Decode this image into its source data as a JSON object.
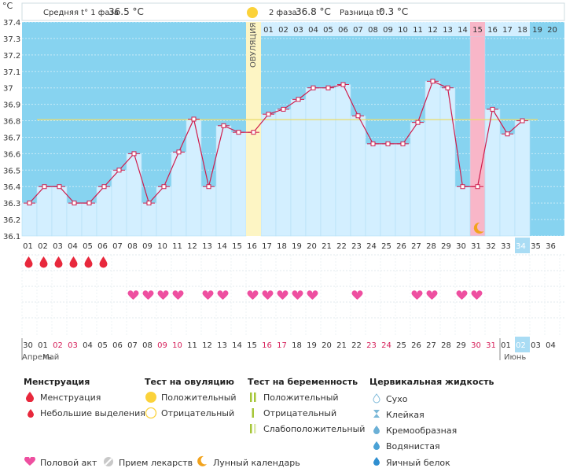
{
  "chart_data": {
    "type": "line",
    "title": "",
    "unit_label": "°C",
    "ylim": [
      36.1,
      37.4
    ],
    "y_ticks": [
      "37.4",
      "37.3",
      "37.2",
      "37.1",
      "37",
      "36.9",
      "36.8",
      "36.7",
      "36.6",
      "36.5",
      "36.4",
      "36.3",
      "36.2",
      "36.1"
    ],
    "cycle_days": [
      "01",
      "02",
      "03",
      "04",
      "05",
      "06",
      "07",
      "08",
      "09",
      "10",
      "11",
      "12",
      "13",
      "14",
      "15",
      "16",
      "17",
      "18",
      "19",
      "20",
      "21",
      "22",
      "23",
      "24",
      "25",
      "26",
      "27",
      "28",
      "29",
      "30",
      "31",
      "32",
      "33",
      "34",
      "35",
      "36"
    ],
    "temperatures": [
      36.3,
      36.4,
      36.4,
      36.3,
      36.3,
      36.4,
      36.5,
      36.6,
      36.3,
      36.4,
      36.61,
      36.81,
      36.4,
      36.77,
      36.73,
      36.73,
      36.84,
      36.87,
      36.93,
      37.0,
      37.0,
      37.02,
      36.83,
      36.66,
      36.66,
      36.66,
      36.79,
      37.04,
      37.0,
      36.4,
      36.4,
      36.87,
      36.72,
      36.8
    ],
    "coverline": 36.81,
    "ovulation_day": "16",
    "ovulation_label": "ОВУЛЯЦИЯ",
    "phase2_days": [
      "01",
      "02",
      "03",
      "04",
      "05",
      "06",
      "07",
      "08",
      "09",
      "10",
      "11",
      "12",
      "13",
      "14",
      "15",
      "16",
      "17",
      "18",
      "19",
      "20"
    ],
    "highlight_phase2_day": "15",
    "current_day": "34",
    "dates": [
      "30",
      "01",
      "02",
      "03",
      "04",
      "05",
      "06",
      "07",
      "08",
      "09",
      "10",
      "11",
      "12",
      "13",
      "14",
      "15",
      "16",
      "17",
      "18",
      "19",
      "20",
      "21",
      "22",
      "23",
      "24",
      "25",
      "26",
      "27",
      "28",
      "29",
      "30",
      "31",
      "01",
      "02",
      "03",
      "04"
    ],
    "weekend_dates_index": [
      2,
      3,
      9,
      10,
      16,
      17,
      23,
      24,
      30,
      31
    ],
    "current_date_index": 33,
    "month_labels": [
      "Апрель",
      "Май",
      "Июнь"
    ],
    "menstruation_days_index": [
      0,
      1,
      2,
      3,
      4,
      5
    ],
    "intercourse_days_index": [
      7,
      8,
      9,
      10,
      12,
      13,
      15,
      16,
      17,
      18,
      19,
      22,
      26,
      27,
      29,
      30
    ],
    "moon_day_index": 30
  },
  "header": {
    "phase1_label": "Средняя t° 1 фаза",
    "phase1_value": "36.5 °C",
    "phase2_label": "2 фаза",
    "phase2_value": "36.8 °C",
    "diff_label": "Разница t°",
    "diff_value": "0.3 °C"
  },
  "legend": {
    "menstruation_title": "Менструация",
    "menstruation_items": [
      "Менструация",
      "Небольшие выделения"
    ],
    "ovulation_title": "Тест на овуляцию",
    "ovulation_items": [
      "Положительный",
      "Отрицательный"
    ],
    "pregnancy_title": "Тест на беременность",
    "pregnancy_items": [
      "Положительный",
      "Отрицательный",
      "Слабоположительный"
    ],
    "cervical_title": "Цервикальная жидкость",
    "cervical_items": [
      "Сухо",
      "Клейкая",
      "Кремообразная",
      "Водянистая",
      "Яичный белок"
    ],
    "bottom_items": [
      "Половой акт",
      "Прием лекарств",
      "Лунный календарь"
    ]
  },
  "colors": {
    "sky": "#87d3f0",
    "bar": "#d3efff",
    "bar_stroke": "#b2e0f5",
    "line": "#cf1d4d",
    "coverline": "#eadc6a",
    "ovulation_band": "#fdf5c4",
    "pink_band": "#f8b6c8",
    "red": "#e8283c",
    "heart": "#ee4fa0",
    "sun": "#fbd23a",
    "moon": "#f2a31d",
    "current": "#a9dcf4"
  }
}
